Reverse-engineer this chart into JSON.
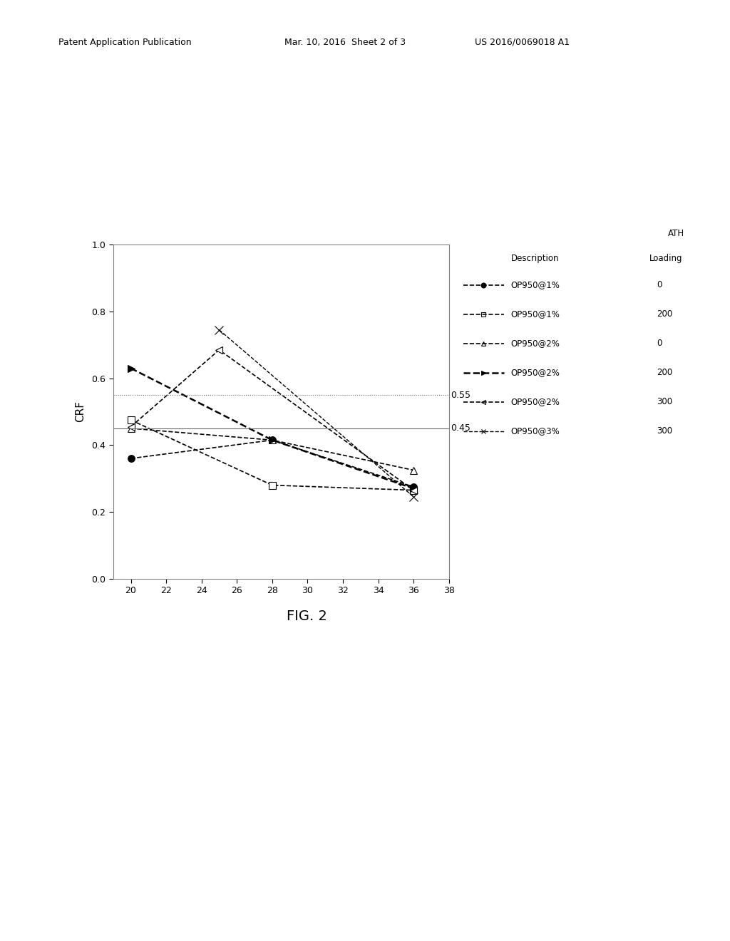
{
  "title": "FIG. 2",
  "ylabel": "CRF",
  "xlim": [
    19,
    38
  ],
  "ylim": [
    0.0,
    1.0
  ],
  "xticks": [
    20,
    22,
    24,
    26,
    28,
    30,
    32,
    34,
    36,
    38
  ],
  "yticks": [
    0.0,
    0.2,
    0.4,
    0.6,
    0.8,
    1.0
  ],
  "hline_dotted": 0.55,
  "hline_solid": 0.45,
  "series": [
    {
      "label": "OP950@1%",
      "ath_loading": "0",
      "x": [
        20,
        28,
        36
      ],
      "y": [
        0.36,
        0.415,
        0.275
      ],
      "marker": "o",
      "marker_size": 7,
      "marker_facecolor": "black",
      "linestyle": "--",
      "linewidth": 1.2,
      "color": "black"
    },
    {
      "label": "OP950@1%",
      "ath_loading": "200",
      "x": [
        20,
        28,
        36
      ],
      "y": [
        0.475,
        0.28,
        0.265
      ],
      "marker": "s",
      "marker_size": 7,
      "marker_facecolor": "white",
      "linestyle": "--",
      "linewidth": 1.2,
      "color": "black"
    },
    {
      "label": "OP950@2%",
      "ath_loading": "0",
      "x": [
        20,
        28,
        36
      ],
      "y": [
        0.45,
        0.415,
        0.325
      ],
      "marker": "^",
      "marker_size": 7,
      "marker_facecolor": "white",
      "linestyle": "--",
      "linewidth": 1.2,
      "color": "black"
    },
    {
      "label": "OP950@2%",
      "ath_loading": "200",
      "x": [
        20,
        28,
        36
      ],
      "y": [
        0.63,
        0.415,
        0.27
      ],
      "marker": ">",
      "marker_size": 7,
      "marker_facecolor": "black",
      "linestyle": "--",
      "linewidth": 1.8,
      "color": "black"
    },
    {
      "label": "OP950@2%",
      "ath_loading": "300",
      "x": [
        20,
        25,
        36
      ],
      "y": [
        0.455,
        0.685,
        0.265
      ],
      "marker": "<",
      "marker_size": 7,
      "marker_facecolor": "white",
      "linestyle": "--",
      "linewidth": 1.2,
      "color": "black",
      "dash_pattern": [
        4,
        3
      ]
    },
    {
      "label": "OP950@3%",
      "ath_loading": "300",
      "x": [
        25,
        36
      ],
      "y": [
        0.745,
        0.245
      ],
      "marker": "x",
      "marker_size": 8,
      "marker_facecolor": "black",
      "linestyle": "--",
      "linewidth": 1.0,
      "color": "black",
      "dash_pattern": [
        3,
        2
      ]
    }
  ],
  "legend_markers": [
    "o",
    "s",
    "^",
    ">",
    "<",
    "x"
  ],
  "legend_linestyles": [
    "--",
    "--",
    "--",
    "--",
    "--",
    "--"
  ],
  "legend_linewidths": [
    1.2,
    1.2,
    1.2,
    1.8,
    1.2,
    1.0
  ],
  "legend_mfc": [
    "black",
    "white",
    "white",
    "black",
    "white",
    "black"
  ],
  "legend_entries": [
    {
      "desc": "OP950@1%",
      "load": "0"
    },
    {
      "desc": "OP950@1%",
      "load": "200"
    },
    {
      "desc": "OP950@2%",
      "load": "0"
    },
    {
      "desc": "OP950@2%",
      "load": "200"
    },
    {
      "desc": "OP950@2%",
      "load": "300"
    },
    {
      "desc": "OP950@3%",
      "load": "300"
    }
  ],
  "header_left": "Patent Application Publication",
  "header_mid": "Mar. 10, 2016  Sheet 2 of 3",
  "header_right": "US 2016/0069018 A1",
  "fig_label": "FIG. 2",
  "background_color": "#ffffff"
}
